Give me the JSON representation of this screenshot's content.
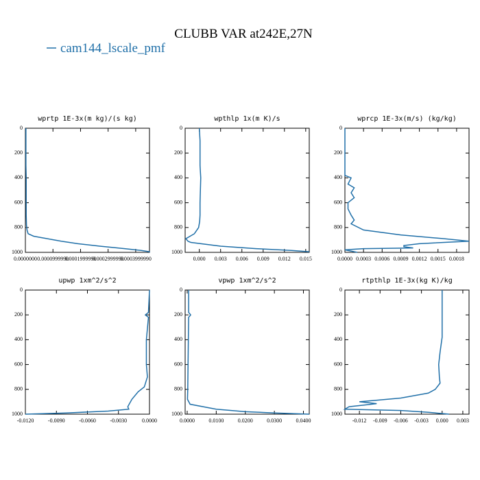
{
  "title": "CLUBB VAR at242E,27N",
  "legend": {
    "name": "cam144_lscale_pmf",
    "color": "#1f6fa8"
  },
  "chart_data": [
    {
      "type": "line",
      "title": "wprtp  1E-3x(m kg)/(s kg)",
      "levels": [
        0,
        100,
        200,
        300,
        400,
        500,
        600,
        700,
        780,
        820,
        850,
        870,
        890,
        910,
        930,
        950,
        970,
        985,
        995,
        1000
      ],
      "series": [
        {
          "values": [
            2e-06,
            2e-06,
            2e-06,
            2e-06,
            3e-06,
            3e-06,
            3e-06,
            3e-06,
            4e-06,
            6e-06,
            1e-05,
            3e-05,
            8e-05,
            0.00013,
            0.00019,
            0.00027,
            0.00036,
            0.00042,
            0.00045,
            0.00045
          ]
        }
      ],
      "xlim": [
        0,
        0.00045
      ],
      "xticks": [
        {
          "value": 0,
          "label": "0.0000000"
        },
        {
          "value": 0.0001,
          "label": "0.0000999990"
        },
        {
          "value": 0.0002,
          "label": "0.0001999990"
        },
        {
          "value": 0.0003,
          "label": "0.0002999990"
        },
        {
          "value": 0.0004,
          "label": "0.0003999990"
        }
      ],
      "ylim": [
        0,
        1000
      ],
      "yticks": [
        0,
        200,
        400,
        600,
        800,
        1000
      ],
      "y_inverted": true
    },
    {
      "type": "line",
      "title": "wpthlp  1x(m K)/s",
      "levels": [
        0,
        100,
        300,
        400,
        600,
        700,
        750,
        800,
        850,
        890,
        910,
        920,
        950,
        970,
        985,
        995
      ],
      "series": [
        {
          "values": [
            0.0,
            0.0001,
            0.0001,
            0.0002,
            0.0001,
            0.0001,
            5e-05,
            -0.0001,
            -0.0007,
            -0.0019,
            -0.0016,
            -0.0012,
            0.003,
            0.008,
            0.013,
            0.0155
          ]
        }
      ],
      "xlim": [
        -0.002,
        0.0155
      ],
      "xticks": [
        {
          "value": 0,
          "label": "0.000"
        },
        {
          "value": 0.003,
          "label": "0.003"
        },
        {
          "value": 0.006,
          "label": "0.006"
        },
        {
          "value": 0.009,
          "label": "0.009"
        },
        {
          "value": 0.012,
          "label": "0.012"
        },
        {
          "value": 0.015,
          "label": "0.015"
        }
      ],
      "ylim": [
        0,
        1000
      ],
      "yticks": [
        0,
        200,
        400,
        600,
        800,
        1000
      ],
      "y_inverted": true
    },
    {
      "type": "line",
      "title": "wprcp  1E-3x(m/s) (kg/kg)",
      "levels": [
        0,
        380,
        400,
        450,
        480,
        520,
        560,
        600,
        650,
        700,
        740,
        770,
        820,
        860,
        890,
        910,
        930,
        945,
        955,
        965,
        970,
        980,
        1000
      ],
      "series": [
        {
          "values": [
            0,
            0,
            0.0001,
            5e-05,
            0.00015,
            0.0001,
            0.00015,
            5e-05,
            5e-05,
            0.0001,
            0.00015,
            0.0001,
            0.0003,
            0.0009,
            0.0016,
            0.002,
            0.0012,
            0.00095,
            0.00095,
            0.0011,
            0.0003,
            0.0,
            0.0002
          ]
        }
      ],
      "xlim": [
        0,
        0.002
      ],
      "xticks": [
        {
          "value": 0,
          "label": "0.0000"
        },
        {
          "value": 0.0003,
          "label": "0.0003"
        },
        {
          "value": 0.0006,
          "label": "0.0006"
        },
        {
          "value": 0.0009,
          "label": "0.0009"
        },
        {
          "value": 0.0012,
          "label": "0.0012"
        },
        {
          "value": 0.0015,
          "label": "0.0015"
        },
        {
          "value": 0.0018,
          "label": "0.0018"
        }
      ],
      "ylim": [
        0,
        1000
      ],
      "yticks": [
        0,
        200,
        400,
        600,
        800,
        1000
      ],
      "y_inverted": true
    },
    {
      "type": "line",
      "title": "upwp  1xm^2/s^2",
      "levels": [
        0,
        180,
        200,
        220,
        400,
        600,
        700,
        780,
        820,
        880,
        940,
        960,
        975,
        990,
        1000
      ],
      "series": [
        {
          "values": [
            0,
            -0.0001,
            -0.0004,
            -0.0001,
            -0.0003,
            -0.0003,
            -0.0002,
            -0.0005,
            -0.0011,
            -0.0017,
            -0.0021,
            -0.002,
            -0.004,
            -0.008,
            -0.012
          ]
        }
      ],
      "xlim": [
        -0.012,
        0
      ],
      "xticks": [
        {
          "value": -0.012,
          "label": "-0.0120"
        },
        {
          "value": -0.009,
          "label": "-0.0090"
        },
        {
          "value": -0.006,
          "label": "-0.0060"
        },
        {
          "value": -0.003,
          "label": "-0.0030"
        },
        {
          "value": 0,
          "label": "0.0000"
        }
      ],
      "ylim": [
        0,
        1000
      ],
      "yticks": [
        0,
        200,
        400,
        600,
        800,
        1000
      ],
      "y_inverted": true
    },
    {
      "type": "line",
      "title": "vpwp  1xm^2/s^2",
      "levels": [
        0,
        180,
        200,
        220,
        400,
        600,
        800,
        880,
        920,
        960,
        980,
        990,
        1000
      ],
      "series": [
        {
          "values": [
            0.0005,
            0.0005,
            0.0012,
            0.0005,
            0.0004,
            0.0003,
            0.0002,
            0.0001,
            0.001,
            0.01,
            0.02,
            0.03,
            0.042
          ]
        }
      ],
      "xlim": [
        -0.0007,
        0.042
      ],
      "xticks": [
        {
          "value": 0,
          "label": "0.0000"
        },
        {
          "value": 0.01,
          "label": "0.0100"
        },
        {
          "value": 0.02,
          "label": "0.0200"
        },
        {
          "value": 0.03,
          "label": "0.0300"
        },
        {
          "value": 0.04,
          "label": "0.0400"
        }
      ],
      "ylim": [
        0,
        1000
      ],
      "yticks": [
        0,
        200,
        400,
        600,
        800,
        1000
      ],
      "y_inverted": true
    },
    {
      "type": "line",
      "title": "rtpthlp  1E-3x(kg K)/kg",
      "levels": [
        0,
        380,
        500,
        600,
        700,
        750,
        800,
        830,
        870,
        890,
        900,
        915,
        925,
        940,
        960,
        970,
        985,
        1000
      ],
      "series": [
        {
          "values": [
            0,
            0,
            -0.0003,
            -0.0005,
            -0.0004,
            -0.0003,
            -0.001,
            -0.002,
            -0.006,
            -0.01,
            -0.012,
            -0.0095,
            -0.011,
            -0.0135,
            -0.0141,
            -0.006,
            -0.002,
            0.001
          ]
        }
      ],
      "xlim": [
        -0.0141,
        0.0039
      ],
      "xticks": [
        {
          "value": -0.012,
          "label": "-0.012"
        },
        {
          "value": -0.009,
          "label": "-0.009"
        },
        {
          "value": -0.006,
          "label": "-0.006"
        },
        {
          "value": -0.003,
          "label": "-0.003"
        },
        {
          "value": 0,
          "label": "0.000"
        },
        {
          "value": 0.003,
          "label": "0.003"
        }
      ],
      "ylim": [
        0,
        1000
      ],
      "yticks": [
        0,
        200,
        400,
        600,
        800,
        1000
      ],
      "y_inverted": true
    }
  ]
}
